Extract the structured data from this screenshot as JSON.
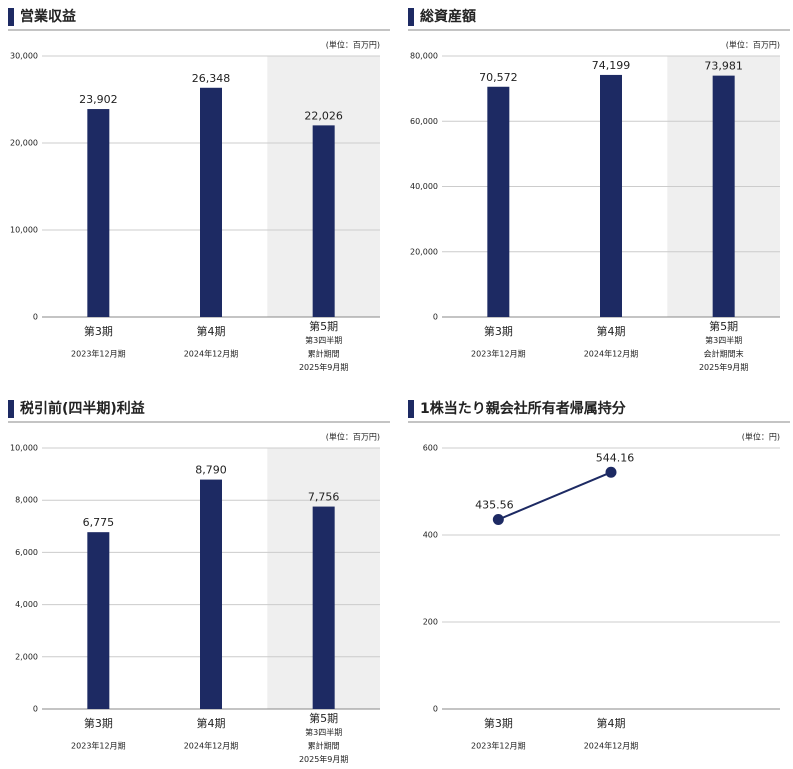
{
  "chart_data": [
    {
      "type": "bar",
      "title": "営業収益",
      "unit": "(単位：百万円)",
      "categories": [
        [
          "第3期",
          "2023年12月期"
        ],
        [
          "第4期",
          "2024年12月期"
        ],
        [
          "第5期",
          "第3四半期",
          "累計期間",
          "2025年9月期"
        ]
      ],
      "values": [
        23902,
        26348,
        22026
      ],
      "value_labels": [
        "23,902",
        "26,348",
        "22,026"
      ],
      "color": "#1d2a63",
      "ylim": [
        0,
        30000
      ],
      "yticks": [
        0,
        {
          "value": 10000,
          "label": "10,000"
        },
        {
          "value": 20000,
          "label": "20,000"
        },
        {
          "value": 30000,
          "label": "30,000"
        }
      ],
      "grid": true,
      "highlight": 2
    },
    {
      "type": "bar",
      "title": "総資産額",
      "unit": "(単位：百万円)",
      "categories": [
        [
          "第3期",
          "2023年12月期"
        ],
        [
          "第4期",
          "2024年12月期"
        ],
        [
          "第5期",
          "第3四半期",
          "会計期間末",
          "2025年9月期"
        ]
      ],
      "values": [
        70572,
        74199,
        73981
      ],
      "value_labels": [
        "70,572",
        "74,199",
        "73,981"
      ],
      "color": "#1d2a63",
      "ylim": [
        0,
        80000
      ],
      "yticks": [
        0,
        {
          "value": 20000,
          "label": "20,000"
        },
        {
          "value": 40000,
          "label": "40,000"
        },
        {
          "value": 60000,
          "label": "60,000"
        },
        {
          "value": 80000,
          "label": "80,000"
        }
      ],
      "grid": true,
      "highlight": 2
    },
    {
      "type": "bar",
      "title": "税引前(四半期)利益",
      "unit": "(単位：百万円)",
      "categories": [
        [
          "第3期",
          "2023年12月期"
        ],
        [
          "第4期",
          "2024年12月期"
        ],
        [
          "第5期",
          "第3四半期",
          "累計期間",
          "2025年9月期"
        ]
      ],
      "values": [
        6775,
        8790,
        7756
      ],
      "value_labels": [
        "6,775",
        "8,790",
        "7,756"
      ],
      "color": "#1d2a63",
      "ylim": [
        0,
        10000
      ],
      "yticks": [
        0,
        {
          "value": 2000,
          "label": "2,000"
        },
        {
          "value": 4000,
          "label": "4,000"
        },
        {
          "value": 6000,
          "label": "6,000"
        },
        {
          "value": 8000,
          "label": "8,000"
        },
        {
          "value": 10000,
          "label": "10,000"
        }
      ],
      "grid": true,
      "highlight": 2
    },
    {
      "type": "line",
      "title": "1株当たり親会社所有者帰属持分",
      "unit": "(単位：円)",
      "categories": [
        [
          "第3期",
          "2023年12月期"
        ],
        [
          "第4期",
          "2024年12月期"
        ]
      ],
      "values": [
        435.56,
        544.16
      ],
      "color": "#1d2a63",
      "ylim": [
        0,
        600
      ],
      "yticks": [
        0,
        200,
        400,
        600
      ],
      "grid": true
    }
  ]
}
